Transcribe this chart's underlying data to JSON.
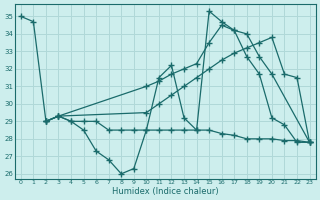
{
  "xlabel": "Humidex (Indice chaleur)",
  "xlim": [
    -0.5,
    23.5
  ],
  "ylim": [
    25.7,
    35.7
  ],
  "yticks": [
    26,
    27,
    28,
    29,
    30,
    31,
    32,
    33,
    34,
    35
  ],
  "xticks": [
    0,
    1,
    2,
    3,
    4,
    5,
    6,
    7,
    8,
    9,
    10,
    11,
    12,
    13,
    14,
    15,
    16,
    17,
    18,
    19,
    20,
    21,
    22,
    23
  ],
  "bg_color": "#cdeeed",
  "grid_color": "#b0d8d8",
  "line_color": "#1a6b6b",
  "s1_x": [
    0,
    1,
    2,
    3,
    4,
    5,
    6,
    7,
    8,
    9,
    10,
    11,
    12,
    13,
    14,
    15,
    16,
    17,
    18,
    19,
    20,
    21,
    22,
    23
  ],
  "s1_y": [
    35.0,
    34.7,
    29.0,
    29.3,
    29.0,
    28.5,
    27.3,
    26.8,
    26.0,
    26.3,
    28.5,
    31.5,
    32.2,
    29.2,
    28.5,
    35.3,
    34.7,
    34.2,
    32.7,
    31.7,
    29.2,
    28.8,
    27.8,
    27.8
  ],
  "s2_x": [
    2,
    3,
    10,
    11,
    12,
    13,
    14,
    15,
    16,
    17,
    18,
    19,
    20,
    23
  ],
  "s2_y": [
    29.0,
    29.3,
    31.0,
    31.3,
    31.7,
    32.0,
    32.3,
    33.5,
    34.5,
    34.2,
    34.0,
    32.7,
    31.7,
    27.8
  ],
  "s3_x": [
    2,
    3,
    10,
    11,
    12,
    13,
    14,
    15,
    16,
    17,
    18,
    19,
    20,
    21,
    22,
    23
  ],
  "s3_y": [
    29.0,
    29.3,
    29.5,
    30.0,
    30.5,
    31.0,
    31.5,
    32.0,
    32.5,
    32.9,
    33.2,
    33.5,
    33.8,
    31.7,
    31.5,
    27.8
  ],
  "s4_x": [
    2,
    3,
    4,
    5,
    6,
    7,
    8,
    9,
    10,
    11,
    12,
    13,
    14,
    15,
    16,
    17,
    18,
    19,
    20,
    21,
    22,
    23
  ],
  "s4_y": [
    29.0,
    29.3,
    29.0,
    29.0,
    29.0,
    28.5,
    28.5,
    28.5,
    28.5,
    28.5,
    28.5,
    28.5,
    28.5,
    28.5,
    28.3,
    28.2,
    28.0,
    28.0,
    28.0,
    27.9,
    27.9,
    27.8
  ]
}
